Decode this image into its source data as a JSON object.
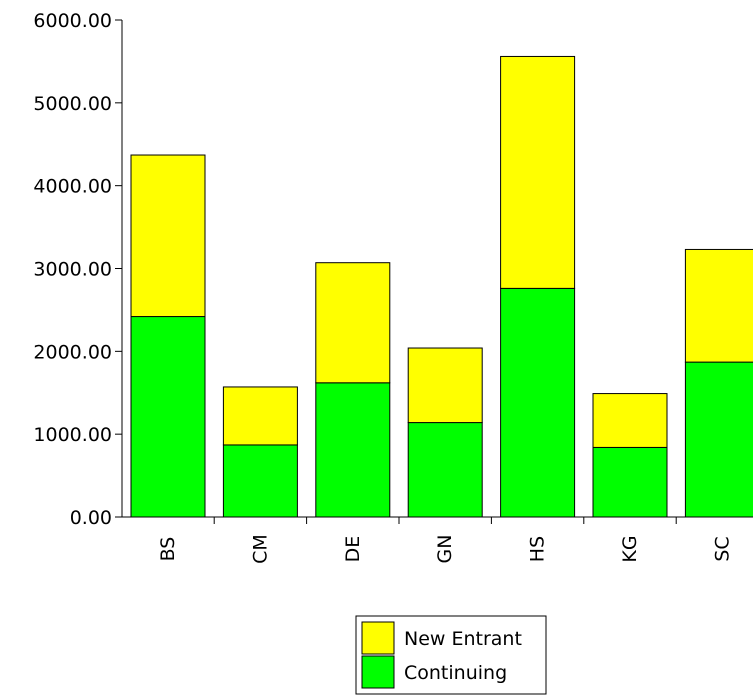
{
  "chart_data": {
    "type": "bar",
    "stacked": true,
    "categories": [
      "BS",
      "CM",
      "DE",
      "GN",
      "HS",
      "KG",
      "SC"
    ],
    "series": [
      {
        "name": "Continuing",
        "color": "#00ff00",
        "values": [
          2420,
          870,
          1620,
          1140,
          2760,
          840,
          1870
        ]
      },
      {
        "name": "New Entrant",
        "color": "#ffff00",
        "values": [
          1950,
          700,
          1450,
          900,
          2800,
          650,
          1360
        ]
      }
    ],
    "legend_order": [
      "New Entrant",
      "Continuing"
    ],
    "legend_position": "bottom-center",
    "y_ticks": [
      "0.00",
      "1000.00",
      "2000.00",
      "3000.00",
      "4000.00",
      "5000.00",
      "6000.00"
    ],
    "ylim": [
      0,
      6000
    ],
    "title": "",
    "xlabel": "",
    "ylabel": "",
    "grid": false
  }
}
